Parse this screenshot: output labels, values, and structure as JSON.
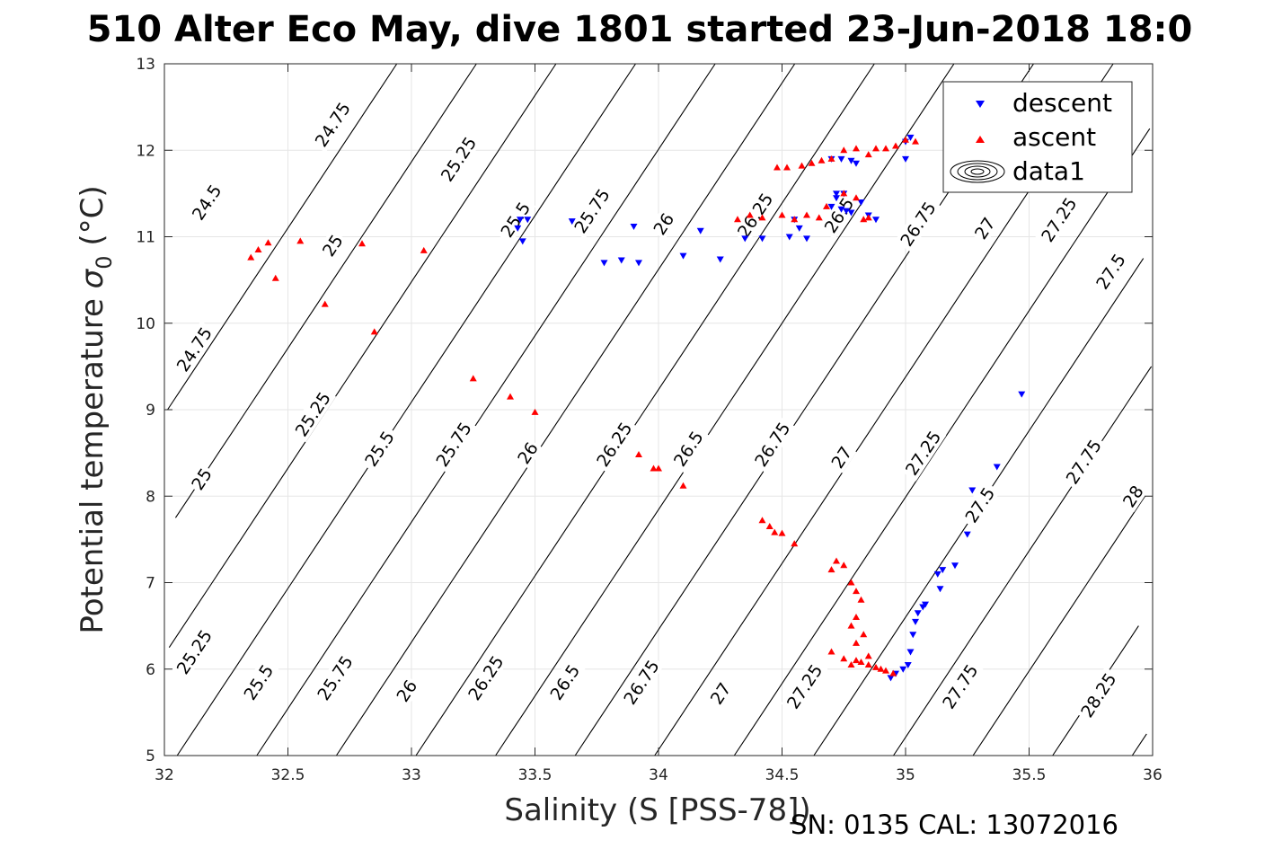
{
  "chart_data": {
    "type": "scatter",
    "title": "510 Alter Eco May, dive 1801 started 23-Jun-2018 18:0",
    "xlabel": "Salinity (S [PSS-78])",
    "ylabel": "Potential temperature σ₀ (°C)",
    "ylabel_main": "Potential temperature ",
    "ylabel_sigma": "σ",
    "ylabel_sub": "0",
    "ylabel_unit": " (°C)",
    "xlim": [
      32,
      36
    ],
    "ylim": [
      5,
      13
    ],
    "x_ticks": [
      32,
      32.5,
      33,
      33.5,
      34,
      34.5,
      35,
      35.5,
      36
    ],
    "y_ticks": [
      5,
      6,
      7,
      8,
      9,
      10,
      11,
      12,
      13
    ],
    "grid": true,
    "legend_position": "top-right",
    "legend": [
      "descent",
      "ascent",
      "data1"
    ],
    "density_contours": {
      "name": "data1",
      "levels": [
        24.5,
        24.75,
        25,
        25.25,
        25.5,
        25.75,
        26,
        26.25,
        26.5,
        26.75,
        27,
        27.25,
        27.5,
        27.75,
        28,
        28.25
      ],
      "labels": [
        {
          "text": "24.5",
          "s": 32.17,
          "t": 11.4
        },
        {
          "text": "24.75",
          "s": 32.68,
          "t": 12.3
        },
        {
          "text": "25.25",
          "s": 33.19,
          "t": 11.9
        },
        {
          "text": "25.5",
          "s": 33.42,
          "t": 11.2
        },
        {
          "text": "25.75",
          "s": 33.73,
          "t": 11.3
        },
        {
          "text": "26",
          "s": 34.02,
          "t": 11.15
        },
        {
          "text": "26.25",
          "s": 34.39,
          "t": 11.25
        },
        {
          "text": "26.5",
          "s": 34.73,
          "t": 11.25
        },
        {
          "text": "26.75",
          "s": 35.05,
          "t": 11.15
        },
        {
          "text": "27",
          "s": 35.32,
          "t": 11.1
        },
        {
          "text": "27.25",
          "s": 35.62,
          "t": 11.2
        },
        {
          "text": "27.5",
          "s": 35.83,
          "t": 10.6
        },
        {
          "text": "25",
          "s": 32.68,
          "t": 10.9
        },
        {
          "text": "24.75",
          "s": 32.12,
          "t": 9.7
        },
        {
          "text": "25.25",
          "s": 32.6,
          "t": 8.95
        },
        {
          "text": "25.5",
          "s": 32.87,
          "t": 8.55
        },
        {
          "text": "25.75",
          "s": 33.17,
          "t": 8.6
        },
        {
          "text": "26",
          "s": 33.47,
          "t": 8.5
        },
        {
          "text": "26.25",
          "s": 33.82,
          "t": 8.6
        },
        {
          "text": "26.5",
          "s": 34.12,
          "t": 8.55
        },
        {
          "text": "26.75",
          "s": 34.46,
          "t": 8.6
        },
        {
          "text": "27",
          "s": 34.74,
          "t": 8.45
        },
        {
          "text": "27.25",
          "s": 35.07,
          "t": 8.5
        },
        {
          "text": "27.5",
          "s": 35.3,
          "t": 7.9
        },
        {
          "text": "27.75",
          "s": 35.72,
          "t": 8.4
        },
        {
          "text": "28",
          "s": 35.92,
          "t": 8.0
        },
        {
          "text": "25",
          "s": 32.15,
          "t": 8.2
        },
        {
          "text": "25.25",
          "s": 32.12,
          "t": 6.2
        },
        {
          "text": "25.5",
          "s": 32.38,
          "t": 5.85
        },
        {
          "text": "25.75",
          "s": 32.69,
          "t": 5.9
        },
        {
          "text": "26",
          "s": 32.98,
          "t": 5.75
        },
        {
          "text": "26.25",
          "s": 33.3,
          "t": 5.9
        },
        {
          "text": "26.5",
          "s": 33.62,
          "t": 5.85
        },
        {
          "text": "26.75",
          "s": 33.93,
          "t": 5.85
        },
        {
          "text": "27",
          "s": 34.25,
          "t": 5.72
        },
        {
          "text": "27.25",
          "s": 34.59,
          "t": 5.8
        },
        {
          "text": "27.75",
          "s": 35.22,
          "t": 5.8
        },
        {
          "text": "28.25",
          "s": 35.78,
          "t": 5.7
        }
      ]
    },
    "series": [
      {
        "name": "descent",
        "color": "#0000ff",
        "marker": "triangle-down",
        "points": [
          [
            33.44,
            11.2
          ],
          [
            33.47,
            11.2
          ],
          [
            33.45,
            10.95
          ],
          [
            33.43,
            11.1
          ],
          [
            33.65,
            11.18
          ],
          [
            33.78,
            10.7
          ],
          [
            33.85,
            10.73
          ],
          [
            33.9,
            11.12
          ],
          [
            33.92,
            10.7
          ],
          [
            34.1,
            10.78
          ],
          [
            34.17,
            11.07
          ],
          [
            34.25,
            10.74
          ],
          [
            34.35,
            10.98
          ],
          [
            34.42,
            10.98
          ],
          [
            34.53,
            11.0
          ],
          [
            34.57,
            11.1
          ],
          [
            34.6,
            10.98
          ],
          [
            34.55,
            11.2
          ],
          [
            34.7,
            11.35
          ],
          [
            34.72,
            11.45
          ],
          [
            34.74,
            11.32
          ],
          [
            34.76,
            11.3
          ],
          [
            34.78,
            11.28
          ],
          [
            34.82,
            11.4
          ],
          [
            34.85,
            11.25
          ],
          [
            34.88,
            11.2
          ],
          [
            34.7,
            11.9
          ],
          [
            34.74,
            11.9
          ],
          [
            34.78,
            11.88
          ],
          [
            34.8,
            11.85
          ],
          [
            34.72,
            11.5
          ],
          [
            34.75,
            11.5
          ],
          [
            35.0,
            12.1
          ],
          [
            35.02,
            12.15
          ],
          [
            35.0,
            11.9
          ],
          [
            34.94,
            5.9
          ],
          [
            34.96,
            5.95
          ],
          [
            34.99,
            6.0
          ],
          [
            35.01,
            6.05
          ],
          [
            35.02,
            6.2
          ],
          [
            35.03,
            6.4
          ],
          [
            35.04,
            6.55
          ],
          [
            35.05,
            6.65
          ],
          [
            35.07,
            6.72
          ],
          [
            35.08,
            6.75
          ],
          [
            35.13,
            7.1
          ],
          [
            35.15,
            7.15
          ],
          [
            35.14,
            6.93
          ],
          [
            35.2,
            7.2
          ],
          [
            35.25,
            7.56
          ],
          [
            35.27,
            8.07
          ],
          [
            35.37,
            8.34
          ],
          [
            35.47,
            9.18
          ]
        ]
      },
      {
        "name": "ascent",
        "color": "#ff0000",
        "marker": "triangle-up",
        "points": [
          [
            32.35,
            10.76
          ],
          [
            32.38,
            10.85
          ],
          [
            32.42,
            10.93
          ],
          [
            32.45,
            10.52
          ],
          [
            32.55,
            10.95
          ],
          [
            32.65,
            10.22
          ],
          [
            32.8,
            10.92
          ],
          [
            32.85,
            9.9
          ],
          [
            33.05,
            10.84
          ],
          [
            33.25,
            9.36
          ],
          [
            33.4,
            9.15
          ],
          [
            33.5,
            8.97
          ],
          [
            33.92,
            8.48
          ],
          [
            33.98,
            8.32
          ],
          [
            34.0,
            8.32
          ],
          [
            34.1,
            8.12
          ],
          [
            34.42,
            7.72
          ],
          [
            34.45,
            7.65
          ],
          [
            34.47,
            7.58
          ],
          [
            34.5,
            7.57
          ],
          [
            34.55,
            7.45
          ],
          [
            34.32,
            11.2
          ],
          [
            34.37,
            11.25
          ],
          [
            34.42,
            11.22
          ],
          [
            34.5,
            11.25
          ],
          [
            34.55,
            11.2
          ],
          [
            34.6,
            11.25
          ],
          [
            34.65,
            11.22
          ],
          [
            34.48,
            11.8
          ],
          [
            34.52,
            11.8
          ],
          [
            34.58,
            11.82
          ],
          [
            34.62,
            11.85
          ],
          [
            34.66,
            11.88
          ],
          [
            34.7,
            11.9
          ],
          [
            34.75,
            12.0
          ],
          [
            34.8,
            12.02
          ],
          [
            34.85,
            11.95
          ],
          [
            34.88,
            12.02
          ],
          [
            34.92,
            12.02
          ],
          [
            34.96,
            12.05
          ],
          [
            35.0,
            12.12
          ],
          [
            35.04,
            12.1
          ],
          [
            34.68,
            11.35
          ],
          [
            34.75,
            11.5
          ],
          [
            34.8,
            11.45
          ],
          [
            34.83,
            11.2
          ],
          [
            34.85,
            11.22
          ],
          [
            34.7,
            7.15
          ],
          [
            34.72,
            7.25
          ],
          [
            34.75,
            7.2
          ],
          [
            34.78,
            7.0
          ],
          [
            34.8,
            6.9
          ],
          [
            34.82,
            6.8
          ],
          [
            34.8,
            6.6
          ],
          [
            34.78,
            6.5
          ],
          [
            34.83,
            6.4
          ],
          [
            34.8,
            6.3
          ],
          [
            34.85,
            6.15
          ],
          [
            34.7,
            6.2
          ],
          [
            34.75,
            6.12
          ],
          [
            34.8,
            6.1
          ],
          [
            34.85,
            6.05
          ],
          [
            34.9,
            6.0
          ],
          [
            34.95,
            5.95
          ],
          [
            34.92,
            5.98
          ],
          [
            34.88,
            6.02
          ],
          [
            34.82,
            6.08
          ],
          [
            34.78,
            6.05
          ]
        ]
      }
    ],
    "legend_icon": "contour-ellipses-icon"
  },
  "footer": "SN: 0135  CAL: 13072016"
}
